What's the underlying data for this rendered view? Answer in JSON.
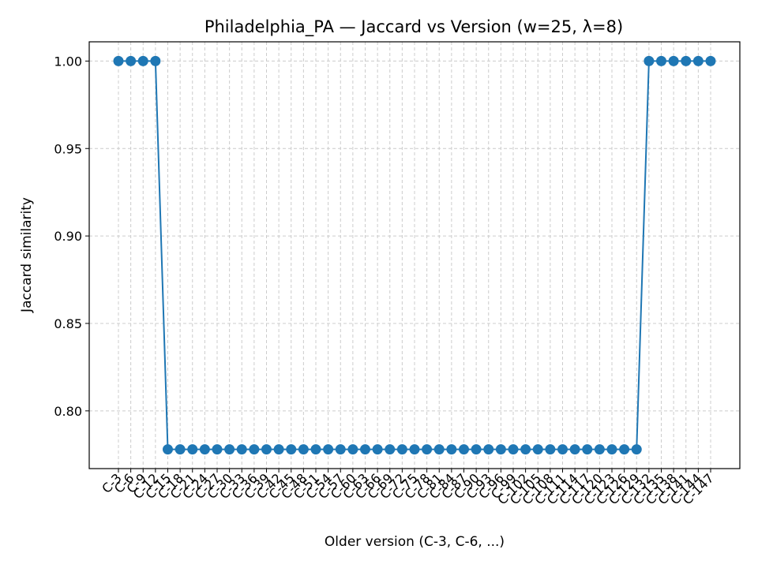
{
  "chart_data": {
    "type": "line",
    "title": "Philadelphia_PA — Jaccard vs Version (w=25, λ=8)",
    "xlabel": "Older version (C-3, C-6, ...)",
    "ylabel": "Jaccard similarity",
    "categories": [
      "C-3",
      "C-6",
      "C-9",
      "C-12",
      "C-15",
      "C-18",
      "C-21",
      "C-24",
      "C-27",
      "C-30",
      "C-33",
      "C-36",
      "C-39",
      "C-42",
      "C-45",
      "C-48",
      "C-51",
      "C-54",
      "C-57",
      "C-60",
      "C-63",
      "C-66",
      "C-69",
      "C-72",
      "C-75",
      "C-78",
      "C-81",
      "C-84",
      "C-87",
      "C-90",
      "C-93",
      "C-96",
      "C-99",
      "C-102",
      "C-105",
      "C-108",
      "C-111",
      "C-114",
      "C-117",
      "C-120",
      "C-123",
      "C-126",
      "C-129",
      "C-132",
      "C-135",
      "C-138",
      "C-141",
      "C-144",
      "C-147"
    ],
    "series": [
      {
        "values": [
          1.0,
          1.0,
          1.0,
          1.0,
          0.778,
          0.778,
          0.778,
          0.778,
          0.778,
          0.778,
          0.778,
          0.778,
          0.778,
          0.778,
          0.778,
          0.778,
          0.778,
          0.778,
          0.778,
          0.778,
          0.778,
          0.778,
          0.778,
          0.778,
          0.778,
          0.778,
          0.778,
          0.778,
          0.778,
          0.778,
          0.778,
          0.778,
          0.778,
          0.778,
          0.778,
          0.778,
          0.778,
          0.778,
          0.778,
          0.778,
          0.778,
          0.778,
          0.778,
          1.0,
          1.0,
          1.0,
          1.0,
          1.0,
          1.0
        ],
        "color": "#1f77b4"
      }
    ],
    "ylim": [
      0.767,
      1.011
    ],
    "yticks": [
      "0.80",
      "0.85",
      "0.90",
      "0.95",
      "1.00"
    ],
    "grid": true,
    "grid_style": "dashed",
    "marker": "circle"
  }
}
